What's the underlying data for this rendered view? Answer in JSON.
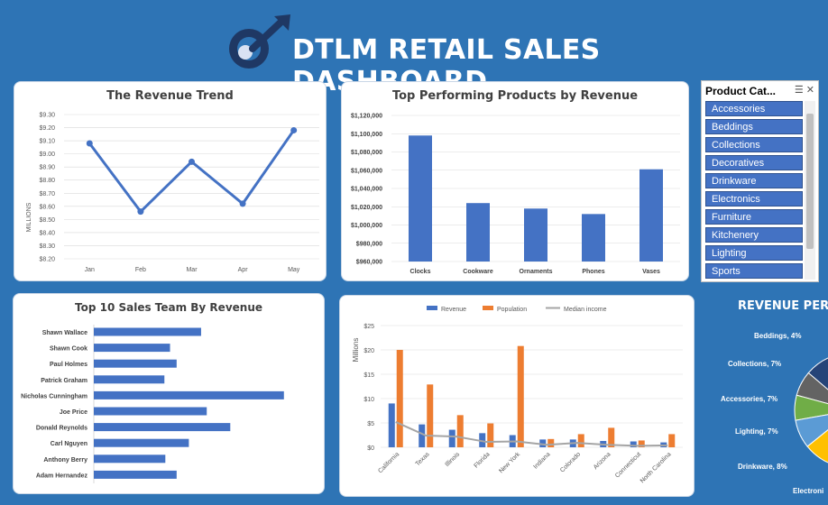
{
  "header": {
    "title": "DTLM RETAIL SALES DASHBOARD",
    "colors": {
      "background": "#2e74b5",
      "accent": "#4472c4",
      "orange": "#ed7d31",
      "gray": "#a5a5a5",
      "logo_dark": "#1f3864"
    }
  },
  "revenue_trend": {
    "title": "The Revenue Trend",
    "ylabel": "MILLIONS",
    "chart_data": {
      "type": "line",
      "categories": [
        "Jan",
        "Feb",
        "Mar",
        "Apr",
        "May"
      ],
      "values": [
        9.08,
        8.56,
        8.94,
        8.62,
        9.18
      ],
      "yticks": [
        "$9.30",
        "$9.20",
        "$9.10",
        "$9.00",
        "$8.90",
        "$8.80",
        "$8.70",
        "$8.60",
        "$8.50",
        "$8.40",
        "$8.30",
        "$8.20"
      ],
      "ylim": [
        8.2,
        9.3
      ]
    }
  },
  "top_products": {
    "title": "Top Performing Products by Revenue",
    "chart_data": {
      "type": "bar",
      "categories": [
        "Clocks",
        "Cookware",
        "Ornaments",
        "Phones",
        "Vases"
      ],
      "values": [
        1098000,
        1024000,
        1018000,
        1012000,
        1061000
      ],
      "yticks": [
        "$1,120,000",
        "$1,100,000",
        "$1,080,000",
        "$1,060,000",
        "$1,040,000",
        "$1,020,000",
        "$1,000,000",
        "$980,000",
        "$960,000"
      ],
      "ylim": [
        960000,
        1120000
      ]
    }
  },
  "slicer": {
    "title": "Product Cat...",
    "items": [
      "Accessories",
      "Beddings",
      "Collections",
      "Decoratives",
      "Drinkware",
      "Electronics",
      "Furniture",
      "Kitchenery",
      "Lighting",
      "Sports"
    ]
  },
  "sales_team": {
    "title": "Top 10 Sales Team By Revenue",
    "chart_data": {
      "type": "bar",
      "orientation": "horizontal",
      "categories": [
        "Shawn Wallace",
        "Shawn Cook",
        "Paul Holmes",
        "Patrick Graham",
        "Nicholas Cunningham",
        "Joe Price",
        "Donald Reynolds",
        "Carl Nguyen",
        "Anthony Berry",
        "Adam Hernandez"
      ],
      "values": [
        114,
        81,
        88,
        75,
        202,
        120,
        145,
        101,
        76,
        88
      ]
    }
  },
  "state_chart": {
    "legend": [
      "Revenue",
      "Population",
      "Median income"
    ],
    "ylabel": "Millions",
    "chart_data": {
      "type": "bar",
      "categories": [
        "California",
        "Texas",
        "Illinois",
        "Florida",
        "New York",
        "Indiana",
        "Colorado",
        "Arizona",
        "Connecticut",
        "North Carolina"
      ],
      "yticks": [
        "$25",
        "$20",
        "$15",
        "$10",
        "$5",
        "$0"
      ],
      "ylim": [
        0,
        25
      ],
      "series": [
        {
          "name": "Revenue",
          "values": [
            9,
            4.7,
            3.6,
            2.9,
            2.5,
            1.6,
            1.6,
            1.3,
            1.2,
            1.0
          ]
        },
        {
          "name": "Population",
          "values": [
            20,
            12.9,
            6.6,
            4.9,
            20.8,
            1.7,
            2.7,
            4.0,
            1.4,
            2.7
          ]
        },
        {
          "name": "Median income",
          "values": [
            5.2,
            2.4,
            2.2,
            1.1,
            1.2,
            0.5,
            0.9,
            0.5,
            0.3,
            0.4
          ]
        }
      ]
    }
  },
  "revenue_pct": {
    "title": "REVENUE PERCE",
    "labels": [
      "Beddings, 4%",
      "Collections, 7%",
      "Accessories, 7%",
      "Lighting, 7%",
      "Drinkware, 8%",
      "Electroni"
    ],
    "chart_data": {
      "type": "pie",
      "categories": [
        "Beddings",
        "Collections",
        "Accessories",
        "Lighting",
        "Drinkware",
        "Electronics"
      ],
      "values": [
        4,
        7,
        7,
        7,
        8,
        8
      ],
      "colors": [
        "#9e480e",
        "#264478",
        "#636363",
        "#70ad47",
        "#5b9bd5",
        "#ffc000"
      ]
    }
  }
}
